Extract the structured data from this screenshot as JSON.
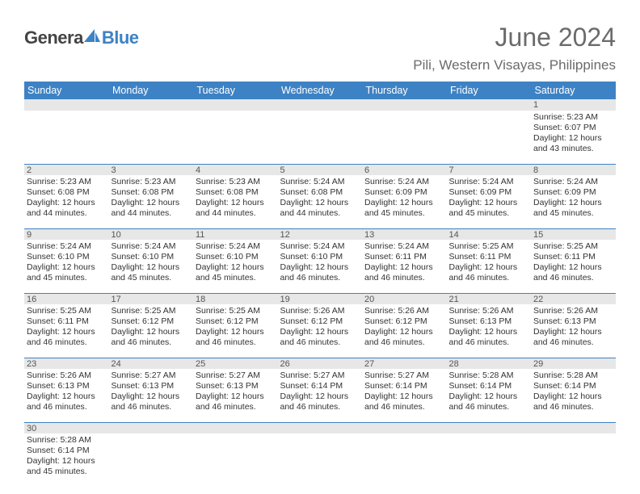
{
  "logo": {
    "text1": "Genera",
    "text2": "Blue"
  },
  "title": "June 2024",
  "location": "Pili, Western Visayas, Philippines",
  "header_bg": "#3d82c4",
  "daynum_bg": "#e7e7e7",
  "text_color": "#333333",
  "days": [
    "Sunday",
    "Monday",
    "Tuesday",
    "Wednesday",
    "Thursday",
    "Friday",
    "Saturday"
  ],
  "weeks": [
    [
      null,
      null,
      null,
      null,
      null,
      null,
      {
        "n": "1",
        "sunrise": "5:23 AM",
        "sunset": "6:07 PM",
        "dl": "12 hours and 43 minutes."
      }
    ],
    [
      {
        "n": "2",
        "sunrise": "5:23 AM",
        "sunset": "6:08 PM",
        "dl": "12 hours and 44 minutes."
      },
      {
        "n": "3",
        "sunrise": "5:23 AM",
        "sunset": "6:08 PM",
        "dl": "12 hours and 44 minutes."
      },
      {
        "n": "4",
        "sunrise": "5:23 AM",
        "sunset": "6:08 PM",
        "dl": "12 hours and 44 minutes."
      },
      {
        "n": "5",
        "sunrise": "5:24 AM",
        "sunset": "6:08 PM",
        "dl": "12 hours and 44 minutes."
      },
      {
        "n": "6",
        "sunrise": "5:24 AM",
        "sunset": "6:09 PM",
        "dl": "12 hours and 45 minutes."
      },
      {
        "n": "7",
        "sunrise": "5:24 AM",
        "sunset": "6:09 PM",
        "dl": "12 hours and 45 minutes."
      },
      {
        "n": "8",
        "sunrise": "5:24 AM",
        "sunset": "6:09 PM",
        "dl": "12 hours and 45 minutes."
      }
    ],
    [
      {
        "n": "9",
        "sunrise": "5:24 AM",
        "sunset": "6:10 PM",
        "dl": "12 hours and 45 minutes."
      },
      {
        "n": "10",
        "sunrise": "5:24 AM",
        "sunset": "6:10 PM",
        "dl": "12 hours and 45 minutes."
      },
      {
        "n": "11",
        "sunrise": "5:24 AM",
        "sunset": "6:10 PM",
        "dl": "12 hours and 45 minutes."
      },
      {
        "n": "12",
        "sunrise": "5:24 AM",
        "sunset": "6:10 PM",
        "dl": "12 hours and 46 minutes."
      },
      {
        "n": "13",
        "sunrise": "5:24 AM",
        "sunset": "6:11 PM",
        "dl": "12 hours and 46 minutes."
      },
      {
        "n": "14",
        "sunrise": "5:25 AM",
        "sunset": "6:11 PM",
        "dl": "12 hours and 46 minutes."
      },
      {
        "n": "15",
        "sunrise": "5:25 AM",
        "sunset": "6:11 PM",
        "dl": "12 hours and 46 minutes."
      }
    ],
    [
      {
        "n": "16",
        "sunrise": "5:25 AM",
        "sunset": "6:11 PM",
        "dl": "12 hours and 46 minutes."
      },
      {
        "n": "17",
        "sunrise": "5:25 AM",
        "sunset": "6:12 PM",
        "dl": "12 hours and 46 minutes."
      },
      {
        "n": "18",
        "sunrise": "5:25 AM",
        "sunset": "6:12 PM",
        "dl": "12 hours and 46 minutes."
      },
      {
        "n": "19",
        "sunrise": "5:26 AM",
        "sunset": "6:12 PM",
        "dl": "12 hours and 46 minutes."
      },
      {
        "n": "20",
        "sunrise": "5:26 AM",
        "sunset": "6:12 PM",
        "dl": "12 hours and 46 minutes."
      },
      {
        "n": "21",
        "sunrise": "5:26 AM",
        "sunset": "6:13 PM",
        "dl": "12 hours and 46 minutes."
      },
      {
        "n": "22",
        "sunrise": "5:26 AM",
        "sunset": "6:13 PM",
        "dl": "12 hours and 46 minutes."
      }
    ],
    [
      {
        "n": "23",
        "sunrise": "5:26 AM",
        "sunset": "6:13 PM",
        "dl": "12 hours and 46 minutes."
      },
      {
        "n": "24",
        "sunrise": "5:27 AM",
        "sunset": "6:13 PM",
        "dl": "12 hours and 46 minutes."
      },
      {
        "n": "25",
        "sunrise": "5:27 AM",
        "sunset": "6:13 PM",
        "dl": "12 hours and 46 minutes."
      },
      {
        "n": "26",
        "sunrise": "5:27 AM",
        "sunset": "6:14 PM",
        "dl": "12 hours and 46 minutes."
      },
      {
        "n": "27",
        "sunrise": "5:27 AM",
        "sunset": "6:14 PM",
        "dl": "12 hours and 46 minutes."
      },
      {
        "n": "28",
        "sunrise": "5:28 AM",
        "sunset": "6:14 PM",
        "dl": "12 hours and 46 minutes."
      },
      {
        "n": "29",
        "sunrise": "5:28 AM",
        "sunset": "6:14 PM",
        "dl": "12 hours and 46 minutes."
      }
    ],
    [
      {
        "n": "30",
        "sunrise": "5:28 AM",
        "sunset": "6:14 PM",
        "dl": "12 hours and 45 minutes."
      },
      null,
      null,
      null,
      null,
      null,
      null
    ]
  ],
  "labels": {
    "sunrise": "Sunrise: ",
    "sunset": "Sunset: ",
    "daylight": "Daylight: "
  }
}
